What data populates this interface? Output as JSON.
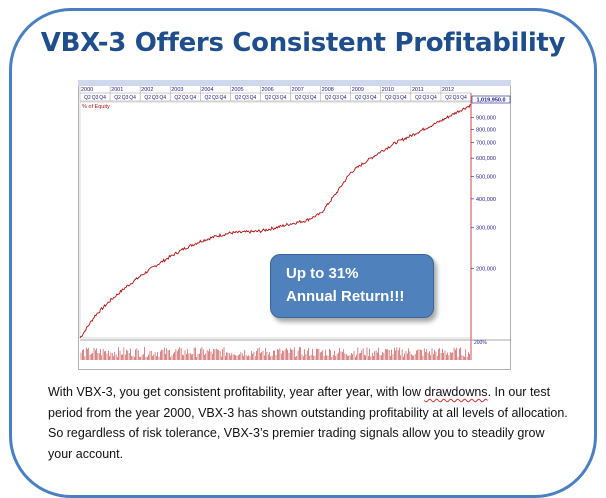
{
  "title": "VBX-3 Offers Consistent Profitability",
  "callout": {
    "line1": "Up to 31%",
    "line2": "Annual  Return!!!"
  },
  "body": {
    "part1": "With VBX-3, you get consistent profitability, year after year, with low ",
    "misspelled": "drawdowns",
    "part2": ". In our test period from the year 2000, VBX-3 has shown outstanding profitability at all levels of allocation. So regardless of risk tolerance, VBX-3’s premier trading signals allow you  to steadily grow your account."
  },
  "colors": {
    "accent": "#4a7fc1",
    "title": "#1f4e8c",
    "series": "#b01010",
    "axis": "#1a1a8c",
    "callout": "#4f81bd"
  },
  "chart_data": {
    "type": "line",
    "years": [
      "2000",
      "2001",
      "2002",
      "2003",
      "2004",
      "2005",
      "2006",
      "2007",
      "2008",
      "2009",
      "2010",
      "2011",
      "2012"
    ],
    "quarter_labels": [
      "Q2",
      "Q3",
      "Q4"
    ],
    "ylabel": "% of Equity",
    "y_ticks": [
      200000,
      300000,
      400000,
      500000,
      600000,
      700000,
      800000,
      900000
    ],
    "y_tick_labels": [
      "200,000",
      "300,000",
      "400,000",
      "500,000",
      "600,000",
      "700,000",
      "800,000",
      "900,000"
    ],
    "last_value_label": "1,019,950.0",
    "lower_pane_label": "200%",
    "y_scale": "log",
    "ylim": [
      100000,
      1050000
    ],
    "x": [
      2000.0,
      2000.5,
      2001.0,
      2001.5,
      2002.0,
      2002.5,
      2003.0,
      2003.5,
      2004.0,
      2004.5,
      2005.0,
      2005.5,
      2006.0,
      2006.5,
      2007.0,
      2007.5,
      2008.0,
      2008.5,
      2009.0,
      2009.5,
      2010.0,
      2010.5,
      2011.0,
      2011.5,
      2012.0,
      2012.5,
      2013.0
    ],
    "values": [
      100000,
      125000,
      145000,
      165000,
      185000,
      205000,
      225000,
      245000,
      262000,
      275000,
      285000,
      287000,
      290000,
      300000,
      312000,
      322000,
      345000,
      420000,
      520000,
      580000,
      640000,
      700000,
      750000,
      810000,
      870000,
      945000,
      1019950
    ]
  }
}
